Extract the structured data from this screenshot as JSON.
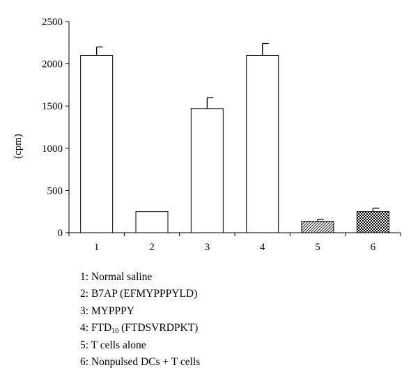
{
  "chart_data": {
    "type": "bar",
    "title": "",
    "xlabel": "",
    "ylabel": "(cpm)",
    "ylim": [
      0,
      2500
    ],
    "yticks": [
      0,
      500,
      1000,
      1500,
      2000,
      2500
    ],
    "grid": false,
    "categories": [
      "1",
      "2",
      "3",
      "4",
      "5",
      "6"
    ],
    "values": [
      2100,
      250,
      1470,
      2100,
      135,
      250
    ],
    "errors": [
      100,
      0,
      130,
      140,
      25,
      40
    ],
    "fills": [
      "white",
      "white",
      "white",
      "white",
      "hatch",
      "checker"
    ]
  },
  "legend": {
    "items": [
      {
        "num": "1:",
        "text": "Normal saline"
      },
      {
        "num": "2:",
        "text": "B7AP (EFMYPPPYLD)"
      },
      {
        "num": "3:",
        "text": "MYPPPY"
      },
      {
        "num": "4:",
        "text": "FTD",
        "sub": "10",
        "tail": "(FTDSVRDPKT)"
      },
      {
        "num": "5:",
        "text": "T cells alone"
      },
      {
        "num": "6:",
        "text": "Nonpulsed DCs + T cells"
      }
    ]
  }
}
